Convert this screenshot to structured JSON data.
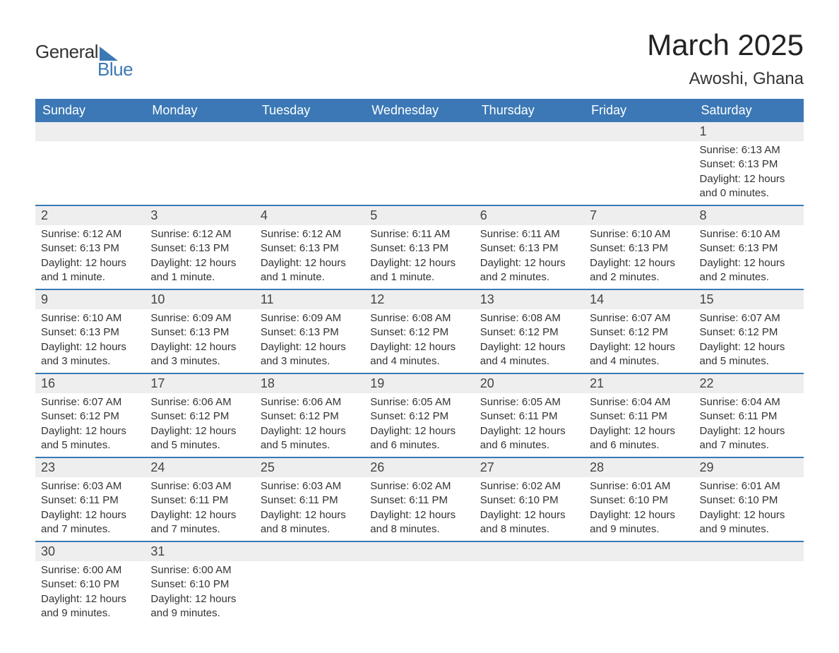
{
  "logo": {
    "line1": "General",
    "line2": "Blue"
  },
  "title": "March 2025",
  "location": "Awoshi, Ghana",
  "colors": {
    "header_bg": "#3b78b5",
    "header_fg": "#ffffff",
    "daynum_bg": "#eeeeee",
    "row_divider": "#3b78b5",
    "logo_accent": "#3b78b5",
    "body_text": "#333333",
    "page_bg": "#ffffff"
  },
  "day_headers": [
    "Sunday",
    "Monday",
    "Tuesday",
    "Wednesday",
    "Thursday",
    "Friday",
    "Saturday"
  ],
  "weeks": [
    [
      {
        "empty": true
      },
      {
        "empty": true
      },
      {
        "empty": true
      },
      {
        "empty": true
      },
      {
        "empty": true
      },
      {
        "empty": true
      },
      {
        "num": "1",
        "sunrise": "Sunrise: 6:13 AM",
        "sunset": "Sunset: 6:13 PM",
        "daylight": "Daylight: 12 hours and 0 minutes."
      }
    ],
    [
      {
        "num": "2",
        "sunrise": "Sunrise: 6:12 AM",
        "sunset": "Sunset: 6:13 PM",
        "daylight": "Daylight: 12 hours and 1 minute."
      },
      {
        "num": "3",
        "sunrise": "Sunrise: 6:12 AM",
        "sunset": "Sunset: 6:13 PM",
        "daylight": "Daylight: 12 hours and 1 minute."
      },
      {
        "num": "4",
        "sunrise": "Sunrise: 6:12 AM",
        "sunset": "Sunset: 6:13 PM",
        "daylight": "Daylight: 12 hours and 1 minute."
      },
      {
        "num": "5",
        "sunrise": "Sunrise: 6:11 AM",
        "sunset": "Sunset: 6:13 PM",
        "daylight": "Daylight: 12 hours and 1 minute."
      },
      {
        "num": "6",
        "sunrise": "Sunrise: 6:11 AM",
        "sunset": "Sunset: 6:13 PM",
        "daylight": "Daylight: 12 hours and 2 minutes."
      },
      {
        "num": "7",
        "sunrise": "Sunrise: 6:10 AM",
        "sunset": "Sunset: 6:13 PM",
        "daylight": "Daylight: 12 hours and 2 minutes."
      },
      {
        "num": "8",
        "sunrise": "Sunrise: 6:10 AM",
        "sunset": "Sunset: 6:13 PM",
        "daylight": "Daylight: 12 hours and 2 minutes."
      }
    ],
    [
      {
        "num": "9",
        "sunrise": "Sunrise: 6:10 AM",
        "sunset": "Sunset: 6:13 PM",
        "daylight": "Daylight: 12 hours and 3 minutes."
      },
      {
        "num": "10",
        "sunrise": "Sunrise: 6:09 AM",
        "sunset": "Sunset: 6:13 PM",
        "daylight": "Daylight: 12 hours and 3 minutes."
      },
      {
        "num": "11",
        "sunrise": "Sunrise: 6:09 AM",
        "sunset": "Sunset: 6:13 PM",
        "daylight": "Daylight: 12 hours and 3 minutes."
      },
      {
        "num": "12",
        "sunrise": "Sunrise: 6:08 AM",
        "sunset": "Sunset: 6:12 PM",
        "daylight": "Daylight: 12 hours and 4 minutes."
      },
      {
        "num": "13",
        "sunrise": "Sunrise: 6:08 AM",
        "sunset": "Sunset: 6:12 PM",
        "daylight": "Daylight: 12 hours and 4 minutes."
      },
      {
        "num": "14",
        "sunrise": "Sunrise: 6:07 AM",
        "sunset": "Sunset: 6:12 PM",
        "daylight": "Daylight: 12 hours and 4 minutes."
      },
      {
        "num": "15",
        "sunrise": "Sunrise: 6:07 AM",
        "sunset": "Sunset: 6:12 PM",
        "daylight": "Daylight: 12 hours and 5 minutes."
      }
    ],
    [
      {
        "num": "16",
        "sunrise": "Sunrise: 6:07 AM",
        "sunset": "Sunset: 6:12 PM",
        "daylight": "Daylight: 12 hours and 5 minutes."
      },
      {
        "num": "17",
        "sunrise": "Sunrise: 6:06 AM",
        "sunset": "Sunset: 6:12 PM",
        "daylight": "Daylight: 12 hours and 5 minutes."
      },
      {
        "num": "18",
        "sunrise": "Sunrise: 6:06 AM",
        "sunset": "Sunset: 6:12 PM",
        "daylight": "Daylight: 12 hours and 5 minutes."
      },
      {
        "num": "19",
        "sunrise": "Sunrise: 6:05 AM",
        "sunset": "Sunset: 6:12 PM",
        "daylight": "Daylight: 12 hours and 6 minutes."
      },
      {
        "num": "20",
        "sunrise": "Sunrise: 6:05 AM",
        "sunset": "Sunset: 6:11 PM",
        "daylight": "Daylight: 12 hours and 6 minutes."
      },
      {
        "num": "21",
        "sunrise": "Sunrise: 6:04 AM",
        "sunset": "Sunset: 6:11 PM",
        "daylight": "Daylight: 12 hours and 6 minutes."
      },
      {
        "num": "22",
        "sunrise": "Sunrise: 6:04 AM",
        "sunset": "Sunset: 6:11 PM",
        "daylight": "Daylight: 12 hours and 7 minutes."
      }
    ],
    [
      {
        "num": "23",
        "sunrise": "Sunrise: 6:03 AM",
        "sunset": "Sunset: 6:11 PM",
        "daylight": "Daylight: 12 hours and 7 minutes."
      },
      {
        "num": "24",
        "sunrise": "Sunrise: 6:03 AM",
        "sunset": "Sunset: 6:11 PM",
        "daylight": "Daylight: 12 hours and 7 minutes."
      },
      {
        "num": "25",
        "sunrise": "Sunrise: 6:03 AM",
        "sunset": "Sunset: 6:11 PM",
        "daylight": "Daylight: 12 hours and 8 minutes."
      },
      {
        "num": "26",
        "sunrise": "Sunrise: 6:02 AM",
        "sunset": "Sunset: 6:11 PM",
        "daylight": "Daylight: 12 hours and 8 minutes."
      },
      {
        "num": "27",
        "sunrise": "Sunrise: 6:02 AM",
        "sunset": "Sunset: 6:10 PM",
        "daylight": "Daylight: 12 hours and 8 minutes."
      },
      {
        "num": "28",
        "sunrise": "Sunrise: 6:01 AM",
        "sunset": "Sunset: 6:10 PM",
        "daylight": "Daylight: 12 hours and 9 minutes."
      },
      {
        "num": "29",
        "sunrise": "Sunrise: 6:01 AM",
        "sunset": "Sunset: 6:10 PM",
        "daylight": "Daylight: 12 hours and 9 minutes."
      }
    ],
    [
      {
        "num": "30",
        "sunrise": "Sunrise: 6:00 AM",
        "sunset": "Sunset: 6:10 PM",
        "daylight": "Daylight: 12 hours and 9 minutes."
      },
      {
        "num": "31",
        "sunrise": "Sunrise: 6:00 AM",
        "sunset": "Sunset: 6:10 PM",
        "daylight": "Daylight: 12 hours and 9 minutes."
      },
      {
        "empty": true
      },
      {
        "empty": true
      },
      {
        "empty": true
      },
      {
        "empty": true
      },
      {
        "empty": true
      }
    ]
  ]
}
